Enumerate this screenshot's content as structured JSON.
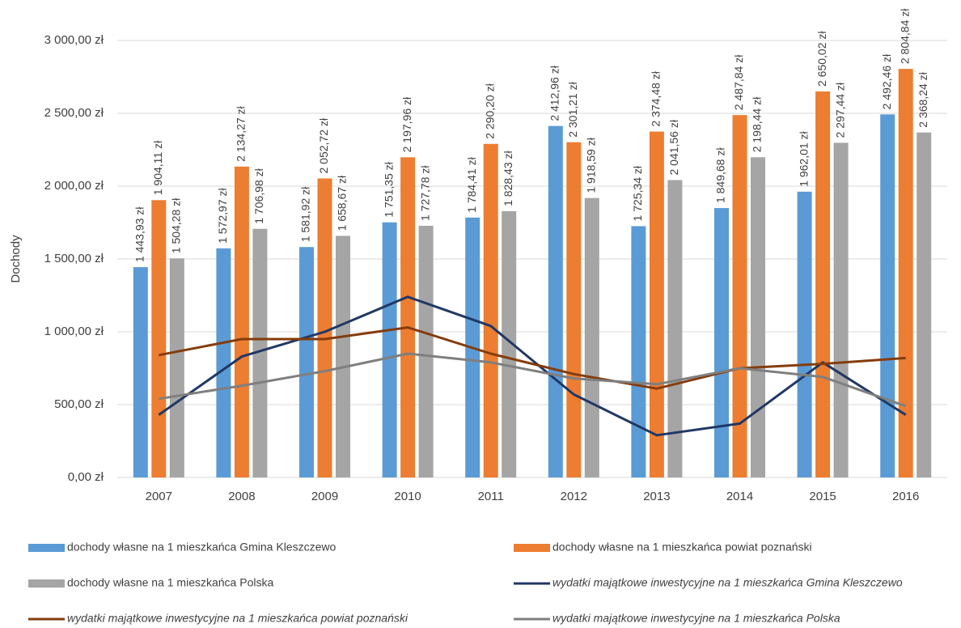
{
  "chart_data": {
    "type": "combo",
    "y_label": "Dochody",
    "categories": [
      "2007",
      "2008",
      "2009",
      "2010",
      "2011",
      "2012",
      "2013",
      "2014",
      "2015",
      "2016"
    ],
    "ylim": [
      0,
      3000
    ],
    "yticks": [
      {
        "value": 0,
        "label": "0,00 zł"
      },
      {
        "value": 500,
        "label": "500,00 zł"
      },
      {
        "value": 1000,
        "label": "1 000,00 zł"
      },
      {
        "value": 1500,
        "label": "1 500,00 zł"
      },
      {
        "value": 2000,
        "label": "2 000,00 zł"
      },
      {
        "value": 2500,
        "label": "2 500,00 zł"
      },
      {
        "value": 3000,
        "label": "3 000,00 zł"
      }
    ],
    "grid": true,
    "series": [
      {
        "name": "dochody własne na 1 mieszkańca  Gmina Kleszczewo",
        "type": "bar",
        "color": "#5b9bd5",
        "values": [
          1443.93,
          1572.97,
          1581.92,
          1751.35,
          1784.41,
          2412.96,
          1725.34,
          1849.68,
          1962.01,
          2492.46
        ],
        "value_labels": [
          "1 443,93 zł",
          "1 572,97 zł",
          "1 581,92 zł",
          "1 751,35 zł",
          "1 784,41 zł",
          "2 412,96 zł",
          "1 725,34 zł",
          "1 849,68 zł",
          "1 962,01 zł",
          "2 492,46 zł"
        ]
      },
      {
        "name": "dochody własne na 1 mieszkańca  powiat poznański",
        "type": "bar",
        "color": "#ed7d31",
        "values": [
          1904.11,
          2134.27,
          2052.72,
          2197.96,
          2290.2,
          2301.21,
          2374.48,
          2487.84,
          2650.02,
          2804.84
        ],
        "value_labels": [
          "1 904,11 zł",
          "2 134,27 zł",
          "2 052,72 zł",
          "2 197,96 zł",
          "2 290,20 zł",
          "2 301,21 zł",
          "2 374,48 zł",
          "2 487,84 zł",
          "2 650,02 zł",
          "2 804,84 zł"
        ]
      },
      {
        "name": "dochody własne na 1 mieszkańca  Polska",
        "type": "bar",
        "color": "#a5a5a5",
        "values": [
          1504.28,
          1706.98,
          1658.67,
          1727.78,
          1828.43,
          1918.59,
          2041.56,
          2198.44,
          2297.44,
          2368.24
        ],
        "value_labels": [
          "1 504,28 zł",
          "1 706,98 zł",
          "1 658,67 zł",
          "1 727,78 zł",
          "1 828,43 zł",
          "1 918,59 zł",
          "2 041,56 zł",
          "2 198,44 zł",
          "2 297,44 zł",
          "2 368,24 zł"
        ]
      },
      {
        "name": "wydatki majątkowe inwestycyjne na 1 mieszkańca  Gmina Kleszczewo",
        "type": "line",
        "color": "#203864",
        "values": [
          430,
          830,
          1000,
          1240,
          1040,
          570,
          290,
          370,
          790,
          430
        ]
      },
      {
        "name": "wydatki majątkowe inwestycyjne na 1 mieszkańca  powiat poznański",
        "type": "line",
        "color": "#843c0c",
        "values": [
          840,
          950,
          950,
          1030,
          850,
          710,
          610,
          750,
          780,
          820
        ]
      },
      {
        "name": "wydatki majątkowe inwestycyjne na 1 mieszkańca  Polska",
        "type": "line",
        "color": "#7f7f7f",
        "values": [
          540,
          630,
          730,
          850,
          790,
          680,
          640,
          750,
          690,
          490
        ]
      }
    ]
  }
}
